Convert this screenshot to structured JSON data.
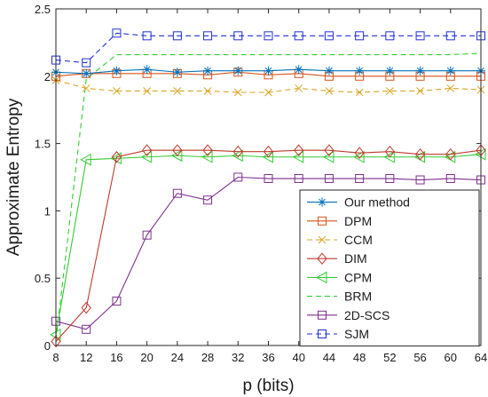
{
  "chart_data": {
    "type": "line",
    "xlabel": "p (bits)",
    "ylabel": "Approximate Entropy",
    "x": [
      8,
      12,
      16,
      20,
      24,
      28,
      32,
      36,
      40,
      44,
      48,
      52,
      56,
      60,
      64
    ],
    "xlim": [
      8,
      64
    ],
    "ylim": [
      0,
      2.5
    ],
    "xticks": [
      "8",
      "12",
      "16",
      "20",
      "24",
      "28",
      "32",
      "36",
      "40",
      "44",
      "48",
      "52",
      "56",
      "60",
      "64"
    ],
    "yticks": [
      "0",
      "0.5",
      "1",
      "1.5",
      "2",
      "2.5"
    ],
    "grid": false,
    "legend_position": "bottom-right",
    "series": [
      {
        "name": "Our method",
        "color": "#0072bd",
        "dash": "solid",
        "marker": "asterisk",
        "values": [
          2.03,
          2.02,
          2.04,
          2.05,
          2.03,
          2.04,
          2.04,
          2.04,
          2.05,
          2.04,
          2.04,
          2.04,
          2.04,
          2.04,
          2.04
        ]
      },
      {
        "name": "DPM",
        "color": "#d95319",
        "dash": "solid",
        "marker": "square",
        "values": [
          2.0,
          2.02,
          2.02,
          2.02,
          2.02,
          2.01,
          2.03,
          2.01,
          2.02,
          2.0,
          2.0,
          2.0,
          2.0,
          2.0,
          2.0
        ]
      },
      {
        "name": "CCM",
        "color": "#d9a420",
        "dash": "dashed",
        "marker": "x",
        "values": [
          1.97,
          1.91,
          1.89,
          1.89,
          1.89,
          1.89,
          1.88,
          1.88,
          1.91,
          1.89,
          1.88,
          1.89,
          1.89,
          1.91,
          1.9
        ]
      },
      {
        "name": "DIM",
        "color": "#c0392b",
        "dash": "solid",
        "marker": "diamond",
        "values": [
          0.03,
          0.28,
          1.4,
          1.45,
          1.45,
          1.45,
          1.44,
          1.44,
          1.45,
          1.45,
          1.43,
          1.44,
          1.42,
          1.42,
          1.45
        ]
      },
      {
        "name": "CPM",
        "color": "#33cc33",
        "dash": "solid",
        "marker": "triangle-left",
        "values": [
          0.08,
          1.38,
          1.39,
          1.4,
          1.41,
          1.4,
          1.41,
          1.4,
          1.4,
          1.4,
          1.4,
          1.4,
          1.4,
          1.4,
          1.42
        ]
      },
      {
        "name": "BRM",
        "color": "#33cc33",
        "dash": "dashed",
        "marker": "none",
        "values": [
          0.04,
          1.98,
          2.16,
          2.16,
          2.16,
          2.16,
          2.16,
          2.16,
          2.16,
          2.16,
          2.16,
          2.16,
          2.16,
          2.16,
          2.17
        ]
      },
      {
        "name": "2D-SCS",
        "color": "#7e2f8e",
        "dash": "solid",
        "marker": "square",
        "values": [
          0.18,
          0.12,
          0.33,
          0.82,
          1.13,
          1.08,
          1.25,
          1.24,
          1.24,
          1.24,
          1.24,
          1.24,
          1.23,
          1.24,
          1.23
        ]
      },
      {
        "name": "SJM",
        "color": "#1f2fd6",
        "dash": "dashed",
        "marker": "square",
        "values": [
          2.12,
          2.1,
          2.32,
          2.3,
          2.3,
          2.3,
          2.3,
          2.3,
          2.3,
          2.3,
          2.3,
          2.3,
          2.3,
          2.3,
          2.3
        ]
      }
    ]
  }
}
